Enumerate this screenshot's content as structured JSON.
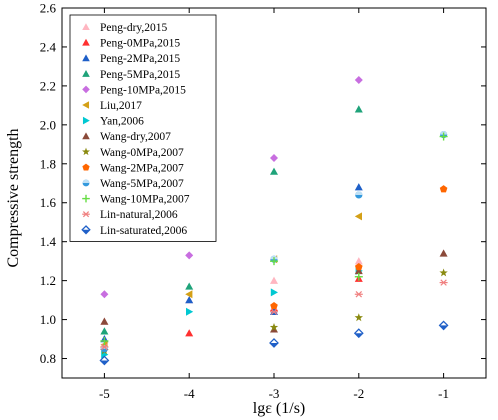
{
  "chart_data": {
    "type": "scatter",
    "xlabel": "lgε (1/s)",
    "ylabel": "Compressive strength",
    "xlim": [
      -5.5,
      -0.5
    ],
    "ylim": [
      0.7,
      2.6
    ],
    "xticks": [
      -5,
      -4,
      -3,
      -2,
      -1
    ],
    "yticks": [
      0.8,
      1.0,
      1.2,
      1.4,
      1.6,
      1.8,
      2.0,
      2.2,
      2.4,
      2.6
    ],
    "grid": false,
    "legend_position": "top-left",
    "series": [
      {
        "name": "Peng-dry,2015",
        "marker": "triangle-up",
        "color": "#ffb6c1",
        "x": [
          -5,
          -4,
          -3,
          -2
        ],
        "y": [
          0.99,
          1.1,
          1.2,
          1.3
        ]
      },
      {
        "name": "Peng-0MPa,2015",
        "marker": "triangle-up",
        "color": "#ff3030",
        "x": [
          -5,
          -4,
          -3,
          -2
        ],
        "y": [
          0.86,
          0.93,
          1.06,
          1.21
        ]
      },
      {
        "name": "Peng-2MPa,2015",
        "marker": "triangle-up",
        "color": "#1e5fc8",
        "x": [
          -5,
          -4,
          -3,
          -2
        ],
        "y": [
          0.9,
          1.1,
          1.04,
          1.68
        ]
      },
      {
        "name": "Peng-5MPa,2015",
        "marker": "triangle-up",
        "color": "#1fa37a",
        "x": [
          -5,
          -4,
          -3,
          -2
        ],
        "y": [
          0.94,
          1.17,
          1.76,
          2.08
        ]
      },
      {
        "name": "Peng-10MPa,2015",
        "marker": "diamond",
        "color": "#c86ee0",
        "x": [
          -5,
          -4,
          -3,
          -2
        ],
        "y": [
          1.13,
          1.33,
          1.83,
          2.23
        ]
      },
      {
        "name": "Liu,2017",
        "marker": "triangle-left",
        "color": "#d4a017",
        "x": [
          -5,
          -4,
          -3,
          -2
        ],
        "y": [
          0.87,
          1.13,
          1.31,
          1.53
        ]
      },
      {
        "name": "Yan,2006",
        "marker": "triangle-right",
        "color": "#00c8d2",
        "x": [
          -5,
          -4,
          -3,
          -2
        ],
        "y": [
          0.82,
          1.04,
          1.14,
          1.25
        ]
      },
      {
        "name": "Wang-dry,2007",
        "marker": "triangle-up",
        "color": "#8b4a3a",
        "x": [
          -5,
          -3,
          -2,
          -1
        ],
        "y": [
          0.99,
          0.95,
          1.25,
          1.34
        ]
      },
      {
        "name": "Wang-0MPa,2007",
        "marker": "star",
        "color": "#8a8a10",
        "x": [
          -5,
          -3,
          -2,
          -1
        ],
        "y": [
          0.84,
          0.96,
          1.01,
          1.24
        ]
      },
      {
        "name": "Wang-2MPa,2007",
        "marker": "pentagon",
        "color": "#ff6600",
        "x": [
          -5,
          -3,
          -2,
          -1
        ],
        "y": [
          0.85,
          1.07,
          1.27,
          1.67
        ]
      },
      {
        "name": "Wang-5MPa,2007",
        "marker": "circle-half",
        "color": "#3399dd",
        "x": [
          -5,
          -3,
          -2,
          -1
        ],
        "y": [
          0.85,
          1.31,
          1.64,
          1.95
        ]
      },
      {
        "name": "Wang-10MPa,2007",
        "marker": "plus",
        "color": "#66dd44",
        "x": [
          -5,
          -3,
          -2,
          -1
        ],
        "y": [
          0.89,
          1.3,
          1.22,
          1.94
        ]
      },
      {
        "name": "Lin-natural,2006",
        "marker": "asterisk",
        "color": "#f08080",
        "x": [
          -5,
          -3,
          -2,
          -1
        ],
        "y": [
          0.86,
          1.04,
          1.13,
          1.19
        ]
      },
      {
        "name": "Lin-saturated,2006",
        "marker": "diamond-half",
        "color": "#2060c8",
        "x": [
          -5,
          -3,
          -2,
          -1
        ],
        "y": [
          0.79,
          0.88,
          0.93,
          0.97
        ]
      }
    ]
  }
}
